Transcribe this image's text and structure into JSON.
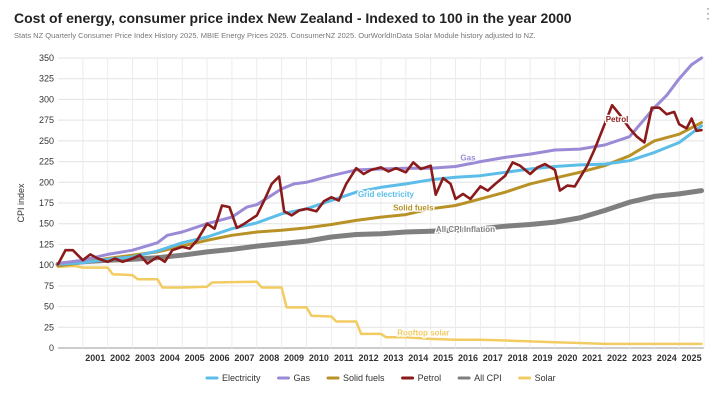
{
  "chart_data": {
    "type": "line",
    "title": "Cost of energy, consumer price index New Zealand - Indexed to 100 in the year 2000",
    "subtitle": "Stats NZ Quarterly Consumer Price Index History 2025. MBIE Energy Prices 2025. ConsumerNZ 2025. OurWorldInData Solar Module history adjusted to NZ.",
    "ylabel": "CPI index",
    "xlabel": "",
    "xlim": [
      2000.0,
      2026.0
    ],
    "ylim": [
      0,
      350
    ],
    "yticks": [
      0,
      25,
      50,
      75,
      100,
      125,
      150,
      175,
      200,
      225,
      250,
      275,
      300,
      325,
      350
    ],
    "xticks": [
      "2001",
      "2002",
      "2003",
      "2004",
      "2005",
      "2006",
      "2007",
      "2008",
      "2009",
      "2010",
      "2011",
      "2012",
      "2013",
      "2014",
      "2015",
      "2016",
      "2017",
      "2018",
      "2019",
      "2020",
      "2021",
      "2022",
      "2023",
      "2024",
      "2025"
    ],
    "grid": true,
    "legend_position": "bottom",
    "series": [
      {
        "name": "Electricity",
        "color": "#5bbde8",
        "label": "Grid electricity",
        "points": [
          [
            2000,
            101
          ],
          [
            2001,
            103
          ],
          [
            2002,
            107
          ],
          [
            2003,
            110
          ],
          [
            2004,
            117
          ],
          [
            2005,
            127
          ],
          [
            2006,
            134
          ],
          [
            2007,
            144
          ],
          [
            2008,
            151
          ],
          [
            2009,
            162
          ],
          [
            2010,
            168
          ],
          [
            2011,
            178
          ],
          [
            2012,
            188
          ],
          [
            2013,
            194
          ],
          [
            2014,
            198
          ],
          [
            2015,
            203
          ],
          [
            2016,
            206
          ],
          [
            2017,
            208
          ],
          [
            2018,
            212
          ],
          [
            2019,
            216
          ],
          [
            2020,
            219
          ],
          [
            2021,
            221
          ],
          [
            2022,
            222
          ],
          [
            2023,
            226
          ],
          [
            2024,
            236
          ],
          [
            2025,
            248
          ],
          [
            2025.9,
            268
          ]
        ]
      },
      {
        "name": "Gas",
        "color": "#9b8ad6",
        "label": "Gas",
        "points": [
          [
            2000,
            102
          ],
          [
            2001,
            106
          ],
          [
            2002,
            113
          ],
          [
            2003,
            118
          ],
          [
            2004,
            127
          ],
          [
            2004.4,
            136
          ],
          [
            2005,
            140
          ],
          [
            2006,
            150
          ],
          [
            2007,
            158
          ],
          [
            2007.6,
            170
          ],
          [
            2008,
            173
          ],
          [
            2009,
            192
          ],
          [
            2009.5,
            198
          ],
          [
            2010,
            200
          ],
          [
            2011,
            208
          ],
          [
            2012,
            215
          ],
          [
            2013,
            216
          ],
          [
            2014,
            217
          ],
          [
            2015,
            217
          ],
          [
            2016,
            219
          ],
          [
            2017,
            225
          ],
          [
            2018,
            230
          ],
          [
            2019,
            234
          ],
          [
            2020,
            239
          ],
          [
            2021,
            240
          ],
          [
            2022,
            245
          ],
          [
            2023,
            255
          ],
          [
            2024,
            290
          ],
          [
            2024.5,
            305
          ],
          [
            2025,
            325
          ],
          [
            2025.5,
            342
          ],
          [
            2025.9,
            350
          ]
        ]
      },
      {
        "name": "Solid fuels",
        "color": "#b89227",
        "label": "Solid fuels",
        "points": [
          [
            2000,
            99
          ],
          [
            2001,
            103
          ],
          [
            2002,
            108
          ],
          [
            2003,
            112
          ],
          [
            2004,
            116
          ],
          [
            2005,
            123
          ],
          [
            2006,
            130
          ],
          [
            2007,
            136
          ],
          [
            2008,
            140
          ],
          [
            2009,
            142
          ],
          [
            2010,
            145
          ],
          [
            2011,
            149
          ],
          [
            2012,
            154
          ],
          [
            2013,
            158
          ],
          [
            2014,
            161
          ],
          [
            2015,
            168
          ],
          [
            2016,
            172
          ],
          [
            2017,
            180
          ],
          [
            2018,
            188
          ],
          [
            2019,
            198
          ],
          [
            2020,
            205
          ],
          [
            2021,
            212
          ],
          [
            2022,
            220
          ],
          [
            2023,
            232
          ],
          [
            2024,
            250
          ],
          [
            2025,
            258
          ],
          [
            2025.9,
            272
          ]
        ]
      },
      {
        "name": "Petrol",
        "color": "#8b1a1a",
        "label": "Petrol",
        "points": [
          [
            2000,
            101
          ],
          [
            2000.3,
            118
          ],
          [
            2000.6,
            118
          ],
          [
            2001,
            106
          ],
          [
            2001.3,
            113
          ],
          [
            2001.6,
            108
          ],
          [
            2002,
            104
          ],
          [
            2002.3,
            108
          ],
          [
            2002.6,
            104
          ],
          [
            2003,
            108
          ],
          [
            2003.3,
            112
          ],
          [
            2003.6,
            102
          ],
          [
            2004,
            110
          ],
          [
            2004.3,
            104
          ],
          [
            2004.6,
            118
          ],
          [
            2005,
            122
          ],
          [
            2005.3,
            120
          ],
          [
            2005.6,
            130
          ],
          [
            2006,
            150
          ],
          [
            2006.3,
            144
          ],
          [
            2006.6,
            172
          ],
          [
            2006.9,
            170
          ],
          [
            2007.2,
            145
          ],
          [
            2007.5,
            150
          ],
          [
            2008,
            160
          ],
          [
            2008.3,
            178
          ],
          [
            2008.6,
            198
          ],
          [
            2008.9,
            207
          ],
          [
            2009.1,
            165
          ],
          [
            2009.4,
            160
          ],
          [
            2009.7,
            166
          ],
          [
            2010,
            168
          ],
          [
            2010.4,
            165
          ],
          [
            2010.7,
            177
          ],
          [
            2011,
            182
          ],
          [
            2011.3,
            178
          ],
          [
            2011.6,
            198
          ],
          [
            2012,
            217
          ],
          [
            2012.3,
            210
          ],
          [
            2012.6,
            215
          ],
          [
            2013,
            218
          ],
          [
            2013.3,
            213
          ],
          [
            2013.6,
            217
          ],
          [
            2014,
            212
          ],
          [
            2014.3,
            224
          ],
          [
            2014.6,
            216
          ],
          [
            2015,
            220
          ],
          [
            2015.2,
            185
          ],
          [
            2015.5,
            205
          ],
          [
            2015.8,
            198
          ],
          [
            2016,
            180
          ],
          [
            2016.3,
            186
          ],
          [
            2016.6,
            180
          ],
          [
            2017,
            195
          ],
          [
            2017.3,
            190
          ],
          [
            2017.6,
            198
          ],
          [
            2018,
            208
          ],
          [
            2018.3,
            224
          ],
          [
            2018.6,
            220
          ],
          [
            2019,
            210
          ],
          [
            2019.3,
            218
          ],
          [
            2019.6,
            222
          ],
          [
            2020,
            215
          ],
          [
            2020.2,
            190
          ],
          [
            2020.5,
            196
          ],
          [
            2020.8,
            195
          ],
          [
            2021,
            205
          ],
          [
            2021.3,
            220
          ],
          [
            2021.6,
            240
          ],
          [
            2022,
            270
          ],
          [
            2022.3,
            293
          ],
          [
            2022.6,
            282
          ],
          [
            2023,
            265
          ],
          [
            2023.3,
            255
          ],
          [
            2023.6,
            248
          ],
          [
            2023.9,
            290
          ],
          [
            2024.2,
            290
          ],
          [
            2024.5,
            282
          ],
          [
            2024.8,
            285
          ],
          [
            2025,
            270
          ],
          [
            2025.3,
            265
          ],
          [
            2025.5,
            277
          ],
          [
            2025.7,
            262
          ],
          [
            2025.9,
            263
          ]
        ]
      },
      {
        "name": "All CPI",
        "color": "#7f7f7f",
        "label": "All CPI Inflation",
        "points": [
          [
            2000,
            101
          ],
          [
            2001,
            104
          ],
          [
            2002,
            106
          ],
          [
            2003,
            107
          ],
          [
            2004,
            109
          ],
          [
            2005,
            112
          ],
          [
            2006,
            116
          ],
          [
            2007,
            119
          ],
          [
            2008,
            123
          ],
          [
            2009,
            126
          ],
          [
            2010,
            129
          ],
          [
            2011,
            134
          ],
          [
            2012,
            137
          ],
          [
            2013,
            138
          ],
          [
            2014,
            140
          ],
          [
            2015,
            141
          ],
          [
            2016,
            142
          ],
          [
            2017,
            144
          ],
          [
            2018,
            147
          ],
          [
            2019,
            149
          ],
          [
            2020,
            152
          ],
          [
            2021,
            157
          ],
          [
            2022,
            166
          ],
          [
            2023,
            176
          ],
          [
            2024,
            183
          ],
          [
            2025,
            186
          ],
          [
            2025.9,
            190
          ]
        ]
      },
      {
        "name": "Solar",
        "color": "#f2cc62",
        "label": "Rooftop solar",
        "points": [
          [
            2000,
            98
          ],
          [
            2000.7,
            99
          ],
          [
            2001,
            97
          ],
          [
            2002,
            97
          ],
          [
            2002.2,
            89
          ],
          [
            2003,
            88
          ],
          [
            2003.2,
            83
          ],
          [
            2004,
            83
          ],
          [
            2004.2,
            73
          ],
          [
            2005,
            73
          ],
          [
            2006,
            74
          ],
          [
            2006.2,
            79
          ],
          [
            2008,
            80
          ],
          [
            2008.2,
            73
          ],
          [
            2009,
            73
          ],
          [
            2009.2,
            49
          ],
          [
            2010,
            49
          ],
          [
            2010.2,
            39
          ],
          [
            2011,
            38
          ],
          [
            2011.2,
            32
          ],
          [
            2012,
            32
          ],
          [
            2012.2,
            17
          ],
          [
            2013,
            17
          ],
          [
            2013.2,
            13
          ],
          [
            2014,
            13
          ],
          [
            2015,
            11
          ],
          [
            2016,
            10
          ],
          [
            2017,
            10
          ],
          [
            2018,
            9
          ],
          [
            2019,
            8
          ],
          [
            2020,
            7
          ],
          [
            2021,
            6
          ],
          [
            2022,
            5
          ],
          [
            2023,
            5
          ],
          [
            2024,
            5
          ],
          [
            2025,
            5
          ],
          [
            2025.9,
            5
          ]
        ]
      }
    ]
  }
}
